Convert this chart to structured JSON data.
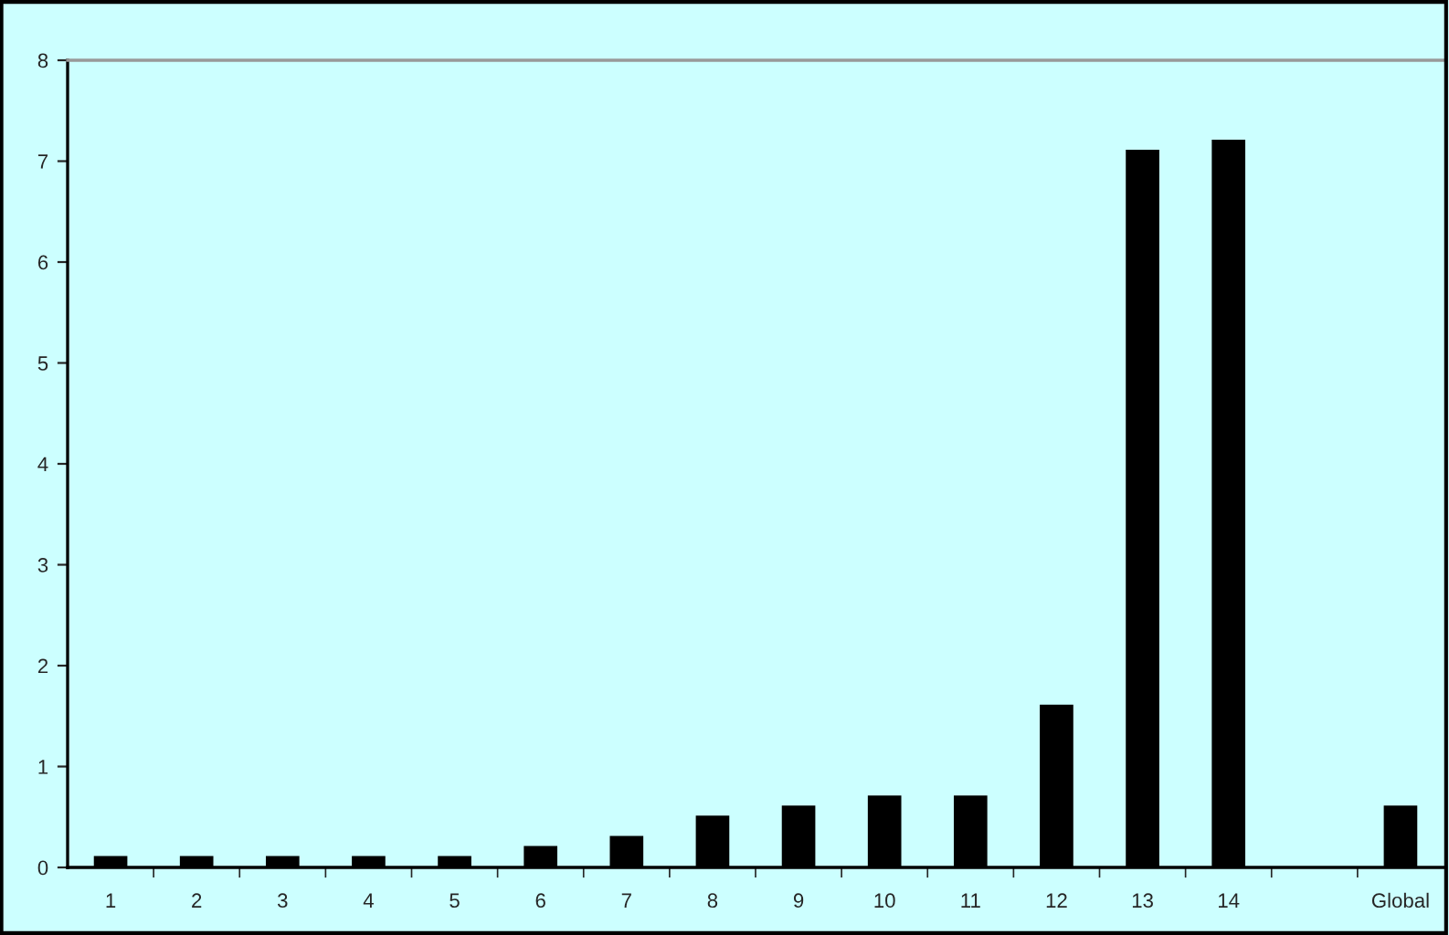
{
  "chart_data": {
    "type": "bar",
    "categories": [
      "1",
      "2",
      "3",
      "4",
      "5",
      "6",
      "7",
      "8",
      "9",
      "10",
      "11",
      "12",
      "13",
      "14",
      null,
      "Global"
    ],
    "values": [
      0.1,
      0.1,
      0.1,
      0.1,
      0.1,
      0.2,
      0.3,
      0.5,
      0.6,
      0.7,
      0.7,
      1.6,
      7.1,
      7.2,
      null,
      0.6
    ],
    "color": "#000000",
    "ylim": [
      0,
      8
    ],
    "yticks": [
      0,
      1,
      2,
      3,
      4,
      5,
      6,
      7,
      8
    ],
    "grid": false,
    "legend": false
  }
}
